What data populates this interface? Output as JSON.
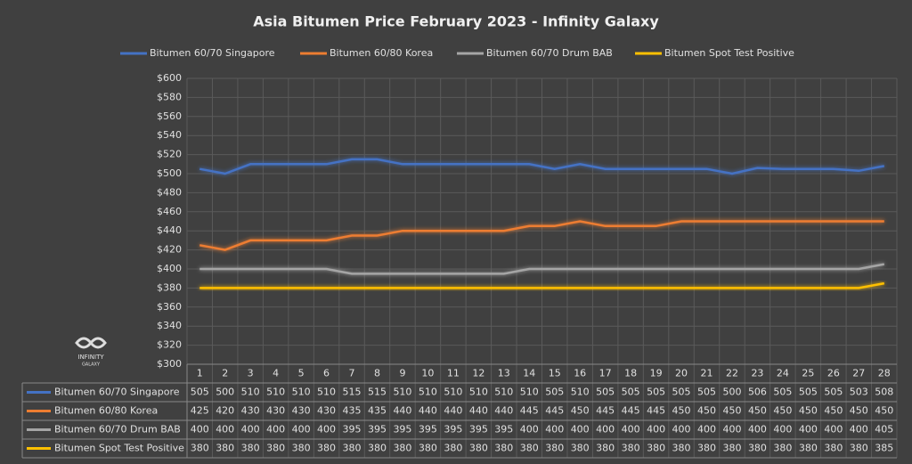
{
  "chart_data": {
    "type": "line",
    "title": "Asia Bitumen Price February 2023 - Infinity Galaxy",
    "categories": [
      "1",
      "2",
      "3",
      "4",
      "5",
      "6",
      "7",
      "8",
      "9",
      "10",
      "11",
      "12",
      "13",
      "14",
      "15",
      "16",
      "17",
      "18",
      "19",
      "20",
      "21",
      "22",
      "23",
      "24",
      "25",
      "26",
      "27",
      "28"
    ],
    "series": [
      {
        "name": "Bitumen 60/70 Singapore",
        "color": "#4472c4",
        "values": [
          505,
          500,
          510,
          510,
          510,
          510,
          515,
          515,
          510,
          510,
          510,
          510,
          510,
          510,
          505,
          510,
          505,
          505,
          505,
          505,
          505,
          500,
          506,
          505,
          505,
          505,
          503,
          508
        ]
      },
      {
        "name": "Bitumen 60/80 Korea",
        "color": "#ed7d31",
        "values": [
          425,
          420,
          430,
          430,
          430,
          430,
          435,
          435,
          440,
          440,
          440,
          440,
          440,
          445,
          445,
          450,
          445,
          445,
          445,
          450,
          450,
          450,
          450,
          450,
          450,
          450,
          450,
          450
        ]
      },
      {
        "name": "Bitumen 60/70 Drum BAB",
        "color": "#a5a5a5",
        "values": [
          400,
          400,
          400,
          400,
          400,
          400,
          395,
          395,
          395,
          395,
          395,
          395,
          395,
          400,
          400,
          400,
          400,
          400,
          400,
          400,
          400,
          400,
          400,
          400,
          400,
          400,
          400,
          405
        ]
      },
      {
        "name": "Bitumen Spot Test Positive",
        "color": "#ffc000",
        "values": [
          380,
          380,
          380,
          380,
          380,
          380,
          380,
          380,
          380,
          380,
          380,
          380,
          380,
          380,
          380,
          380,
          380,
          380,
          380,
          380,
          380,
          380,
          380,
          380,
          380,
          380,
          380,
          385
        ]
      }
    ],
    "ylim": [
      300,
      600
    ],
    "yticks": [
      {
        "value": 300,
        "label": "$300"
      },
      {
        "value": 320,
        "label": "$320"
      },
      {
        "value": 340,
        "label": "$340"
      },
      {
        "value": 360,
        "label": "$360"
      },
      {
        "value": 380,
        "label": "$380"
      },
      {
        "value": 400,
        "label": "$400"
      },
      {
        "value": 420,
        "label": "$420"
      },
      {
        "value": 440,
        "label": "$440"
      },
      {
        "value": 460,
        "label": "$460"
      },
      {
        "value": 480,
        "label": "$480"
      },
      {
        "value": 500,
        "label": "$500"
      },
      {
        "value": 520,
        "label": "$520"
      },
      {
        "value": 540,
        "label": "$540"
      },
      {
        "value": 560,
        "label": "$560"
      },
      {
        "value": 580,
        "label": "$580"
      },
      {
        "value": 600,
        "label": "$600"
      }
    ],
    "grid": true
  },
  "logo": {
    "name": "INFINITY",
    "sub": "GALAXY"
  }
}
